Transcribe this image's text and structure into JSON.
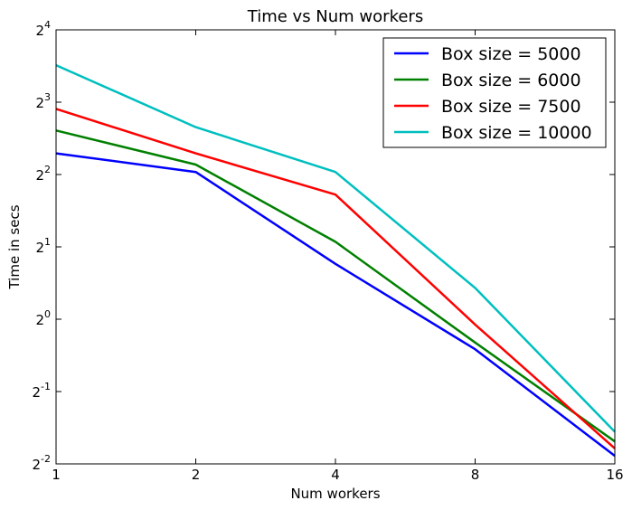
{
  "chart_data": {
    "type": "line",
    "title": "Time vs Num workers",
    "xlabel": "Num workers",
    "ylabel": "Time in secs",
    "x_scale": "log2",
    "y_scale": "log2",
    "x": [
      1,
      2,
      4,
      8,
      16
    ],
    "x_tick_labels": [
      "1",
      "2",
      "4",
      "8",
      "16"
    ],
    "y_ticks": [
      {
        "base": "2",
        "exp": "-2",
        "value": 0.25
      },
      {
        "base": "2",
        "exp": "-1",
        "value": 0.5
      },
      {
        "base": "2",
        "exp": "0",
        "value": 1
      },
      {
        "base": "2",
        "exp": "1",
        "value": 2
      },
      {
        "base": "2",
        "exp": "2",
        "value": 4
      },
      {
        "base": "2",
        "exp": "3",
        "value": 8
      },
      {
        "base": "2",
        "exp": "4",
        "value": 16
      }
    ],
    "xlim": [
      1,
      16
    ],
    "ylim": [
      0.25,
      16
    ],
    "grid": false,
    "legend_position": "top-right",
    "series": [
      {
        "name": "Box size = 5000",
        "color": "#0000ff",
        "values": [
          4.9,
          4.1,
          1.7,
          0.75,
          0.27
        ]
      },
      {
        "name": "Box size = 6000",
        "color": "#008000",
        "values": [
          6.1,
          4.4,
          2.1,
          0.8,
          0.31
        ]
      },
      {
        "name": "Box size = 7500",
        "color": "#ff0000",
        "values": [
          7.5,
          4.9,
          3.3,
          0.95,
          0.29
        ]
      },
      {
        "name": "Box size = 10000",
        "color": "#00bfbf",
        "values": [
          11.4,
          6.3,
          4.1,
          1.35,
          0.34
        ]
      }
    ]
  }
}
